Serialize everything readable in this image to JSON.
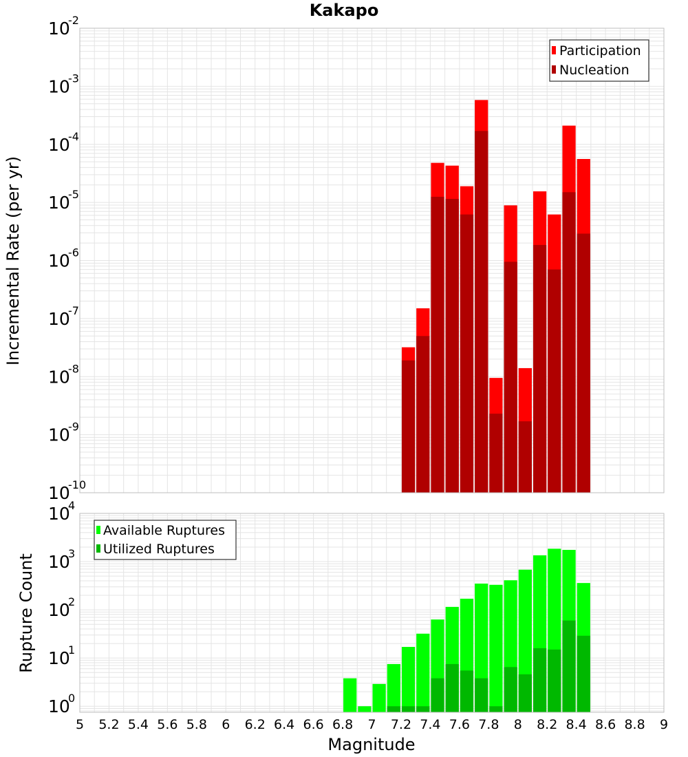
{
  "title": "Kakapo",
  "xlabel": "Magnitude",
  "colors": {
    "participation": "#ff0000",
    "nucleation": "#b00000",
    "available": "#00ff00",
    "utilized": "#00b800",
    "grid": "#e4e4e4",
    "frame": "#bdbdbd"
  },
  "chart_data": [
    {
      "type": "bar",
      "scale": "log",
      "ylabel": "Incremental Rate (per yr)",
      "xlim": [
        5,
        9
      ],
      "ylim": [
        1e-10,
        0.01
      ],
      "bar_width": 0.1,
      "y_ticks": [
        {
          "base": "10",
          "exp": "-10"
        },
        {
          "base": "10",
          "exp": "-9"
        },
        {
          "base": "10",
          "exp": "-8"
        },
        {
          "base": "10",
          "exp": "-7"
        },
        {
          "base": "10",
          "exp": "-6"
        },
        {
          "base": "10",
          "exp": "-5"
        },
        {
          "base": "10",
          "exp": "-4"
        },
        {
          "base": "10",
          "exp": "-3"
        },
        {
          "base": "10",
          "exp": "-2"
        }
      ],
      "legend": {
        "position": "top-right",
        "entries": [
          "Participation",
          "Nucleation"
        ]
      },
      "x": [
        7.25,
        7.35,
        7.45,
        7.55,
        7.65,
        7.75,
        7.85,
        7.95,
        8.05,
        8.15,
        8.25,
        8.35,
        8.45
      ],
      "series": [
        {
          "name": "Participation",
          "values": [
            3.2e-08,
            1.5e-07,
            4.8e-05,
            4.3e-05,
            1.9e-05,
            0.00058,
            9.5e-09,
            8.9e-06,
            1.4e-08,
            1.55e-05,
            6.2e-06,
            0.00021,
            5.6e-05
          ]
        },
        {
          "name": "Nucleation",
          "values": [
            1.9e-08,
            5e-08,
            1.25e-05,
            1.15e-05,
            6.2e-06,
            0.00017,
            2.3e-09,
            9.5e-07,
            1.7e-09,
            1.85e-06,
            7e-07,
            1.5e-05,
            2.9e-06
          ]
        }
      ]
    },
    {
      "type": "bar",
      "scale": "log",
      "ylabel": "Rupture Count",
      "xlim": [
        5,
        9
      ],
      "ylim": [
        0.75,
        10000
      ],
      "bar_width": 0.1,
      "y_ticks": [
        {
          "base": "10",
          "exp": "0"
        },
        {
          "base": "10",
          "exp": "1"
        },
        {
          "base": "10",
          "exp": "2"
        },
        {
          "base": "10",
          "exp": "3"
        },
        {
          "base": "10",
          "exp": "4"
        }
      ],
      "x_ticks": [
        "5",
        "5.2",
        "5.4",
        "5.6",
        "5.8",
        "6",
        "6.2",
        "6.4",
        "6.6",
        "6.8",
        "7",
        "7.2",
        "7.4",
        "7.6",
        "7.8",
        "8",
        "8.2",
        "8.4",
        "8.6",
        "8.8",
        "9"
      ],
      "legend": {
        "position": "top-left",
        "entries": [
          "Available Ruptures",
          "Utilized Ruptures"
        ]
      },
      "x": [
        6.85,
        6.95,
        7.05,
        7.15,
        7.25,
        7.35,
        7.45,
        7.55,
        7.65,
        7.75,
        7.85,
        7.95,
        8.05,
        8.15,
        8.25,
        8.35,
        8.45
      ],
      "series": [
        {
          "name": "Available Ruptures",
          "values": [
            3.8,
            1,
            2.9,
            7.5,
            17,
            32,
            63,
            115,
            170,
            350,
            330,
            410,
            680,
            1350,
            1850,
            1750,
            360
          ]
        },
        {
          "name": "Utilized Ruptures",
          "values": [
            0,
            0,
            0,
            1,
            1,
            1,
            3.8,
            7.5,
            5.5,
            3.8,
            1,
            6.5,
            4.6,
            16,
            15,
            60,
            29
          ]
        }
      ]
    }
  ]
}
